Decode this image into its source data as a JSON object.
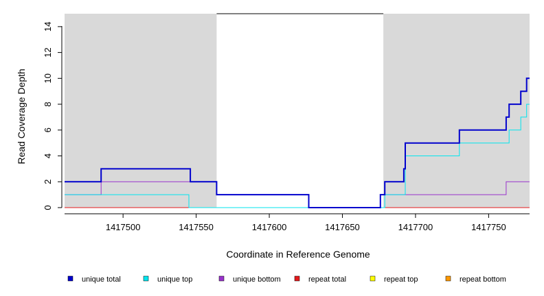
{
  "chart_data": {
    "type": "line",
    "xlabel": "Coordinate in Reference Genome",
    "ylabel": "Read Coverage Depth",
    "xlim": [
      1417460,
      1417778
    ],
    "ylim": [
      0,
      15
    ],
    "x_ticks": [
      1417500,
      1417550,
      1417600,
      1417650,
      1417700,
      1417750
    ],
    "x_tick_labels": [
      "1417500",
      "1417550",
      "1417600",
      "1417650",
      "1417700",
      "1417750"
    ],
    "y_ticks": [
      0,
      2,
      4,
      6,
      8,
      10,
      12,
      14
    ],
    "y_tick_labels": [
      "0",
      "2",
      "4",
      "6",
      "8",
      "10",
      "12",
      "14"
    ],
    "shaded_regions": [
      {
        "x": [
          1417460,
          1417564
        ],
        "color": "#d9d9d9"
      },
      {
        "x": [
          1417678,
          1417778
        ],
        "color": "#d9d9d9"
      }
    ],
    "gap_marker_y": 15,
    "series": [
      {
        "name": "unique total",
        "color": "#0000cd",
        "width": 2,
        "points": [
          [
            1417460,
            2
          ],
          [
            1417485,
            2
          ],
          [
            1417485,
            3
          ],
          [
            1417546,
            3
          ],
          [
            1417546,
            2
          ],
          [
            1417564,
            2
          ],
          [
            1417564,
            1
          ],
          [
            1417627,
            1
          ],
          [
            1417627,
            0
          ],
          [
            1417676,
            0
          ],
          [
            1417676,
            1
          ],
          [
            1417679,
            1
          ],
          [
            1417679,
            2
          ],
          [
            1417692,
            2
          ],
          [
            1417692,
            3
          ],
          [
            1417693,
            3
          ],
          [
            1417693,
            5
          ],
          [
            1417730,
            5
          ],
          [
            1417730,
            6
          ],
          [
            1417762,
            6
          ],
          [
            1417762,
            7
          ],
          [
            1417764,
            7
          ],
          [
            1417764,
            8
          ],
          [
            1417772,
            8
          ],
          [
            1417772,
            9
          ],
          [
            1417776,
            9
          ],
          [
            1417776,
            10
          ],
          [
            1417778,
            10
          ]
        ]
      },
      {
        "name": "unique top",
        "color": "#00e5ee",
        "width": 1,
        "points": [
          [
            1417460,
            1
          ],
          [
            1417545,
            1
          ],
          [
            1417545,
            0
          ],
          [
            1417679,
            0
          ],
          [
            1417679,
            1
          ],
          [
            1417693,
            1
          ],
          [
            1417693,
            4
          ],
          [
            1417730,
            4
          ],
          [
            1417730,
            5
          ],
          [
            1417764,
            5
          ],
          [
            1417764,
            6
          ],
          [
            1417772,
            6
          ],
          [
            1417772,
            7
          ],
          [
            1417776,
            7
          ],
          [
            1417776,
            8
          ],
          [
            1417778,
            8
          ]
        ]
      },
      {
        "name": "unique bottom",
        "color": "#9932cc",
        "width": 1,
        "points": [
          [
            1417460,
            1
          ],
          [
            1417485,
            1
          ],
          [
            1417485,
            2
          ],
          [
            1417564,
            2
          ],
          [
            1417564,
            1
          ],
          [
            1417627,
            1
          ],
          [
            1417627,
            0
          ],
          [
            1417676,
            0
          ],
          [
            1417676,
            1
          ],
          [
            1417762,
            1
          ],
          [
            1417762,
            2
          ],
          [
            1417778,
            2
          ]
        ]
      },
      {
        "name": "repeat total",
        "color": "#e31a1c",
        "width": 1,
        "points": [
          [
            1417460,
            0
          ],
          [
            1417778,
            0
          ]
        ]
      },
      {
        "name": "repeat top",
        "color": "#ffff00",
        "width": 1,
        "points": [
          [
            1417460,
            0
          ],
          [
            1417778,
            0
          ]
        ]
      },
      {
        "name": "repeat bottom",
        "color": "#ff9900",
        "width": 1,
        "points": [
          [
            1417460,
            0
          ],
          [
            1417778,
            0
          ]
        ]
      }
    ],
    "legend": {
      "placement": "bottom",
      "entries": [
        {
          "label": "unique total",
          "color": "#0000cd"
        },
        {
          "label": "unique top",
          "color": "#00e5ee"
        },
        {
          "label": "unique bottom",
          "color": "#9932cc"
        },
        {
          "label": "repeat total",
          "color": "#e31a1c"
        },
        {
          "label": "repeat top",
          "color": "#ffff00"
        },
        {
          "label": "repeat bottom",
          "color": "#ff9900"
        }
      ]
    }
  }
}
